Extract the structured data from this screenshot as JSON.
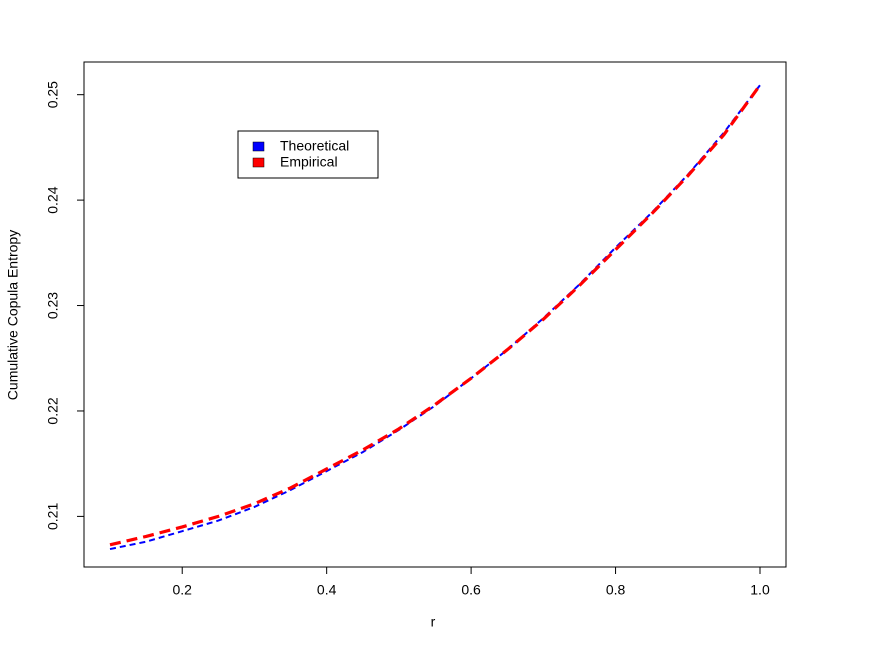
{
  "chart_data": {
    "type": "line",
    "xlabel": "r",
    "ylabel": "Cumulative Copula Entropy",
    "x": [
      0.1,
      0.15,
      0.2,
      0.25,
      0.3,
      0.35,
      0.4,
      0.45,
      0.5,
      0.55,
      0.6,
      0.65,
      0.7,
      0.75,
      0.8,
      0.85,
      0.9,
      0.95,
      1.0
    ],
    "series": [
      {
        "name": "Theoretical",
        "color": "#0000ff",
        "values": [
          0.2069,
          0.2076,
          0.2086,
          0.2096,
          0.2109,
          0.2125,
          0.2143,
          0.2161,
          0.2182,
          0.2205,
          0.2231,
          0.2258,
          0.2288,
          0.232,
          0.2355,
          0.2388,
          0.2424,
          0.2464,
          0.2509
        ]
      },
      {
        "name": "Empirical",
        "color": "#ff0000",
        "values": [
          0.2073,
          0.2081,
          0.209,
          0.21,
          0.2112,
          0.2127,
          0.2145,
          0.2163,
          0.2183,
          0.2206,
          0.2231,
          0.2258,
          0.2287,
          0.2319,
          0.2353,
          0.2387,
          0.2423,
          0.2462,
          0.2509
        ]
      }
    ],
    "xlim": [
      0.064,
      1.036
    ],
    "ylim": [
      0.2052,
      0.2531
    ],
    "xticks": [
      0.2,
      0.4,
      0.6,
      0.8,
      {
        "value": 1,
        "label": "1.0"
      }
    ],
    "yticks": [
      0.21,
      0.22,
      0.23,
      0.24,
      0.25
    ],
    "legend": "top-left"
  }
}
